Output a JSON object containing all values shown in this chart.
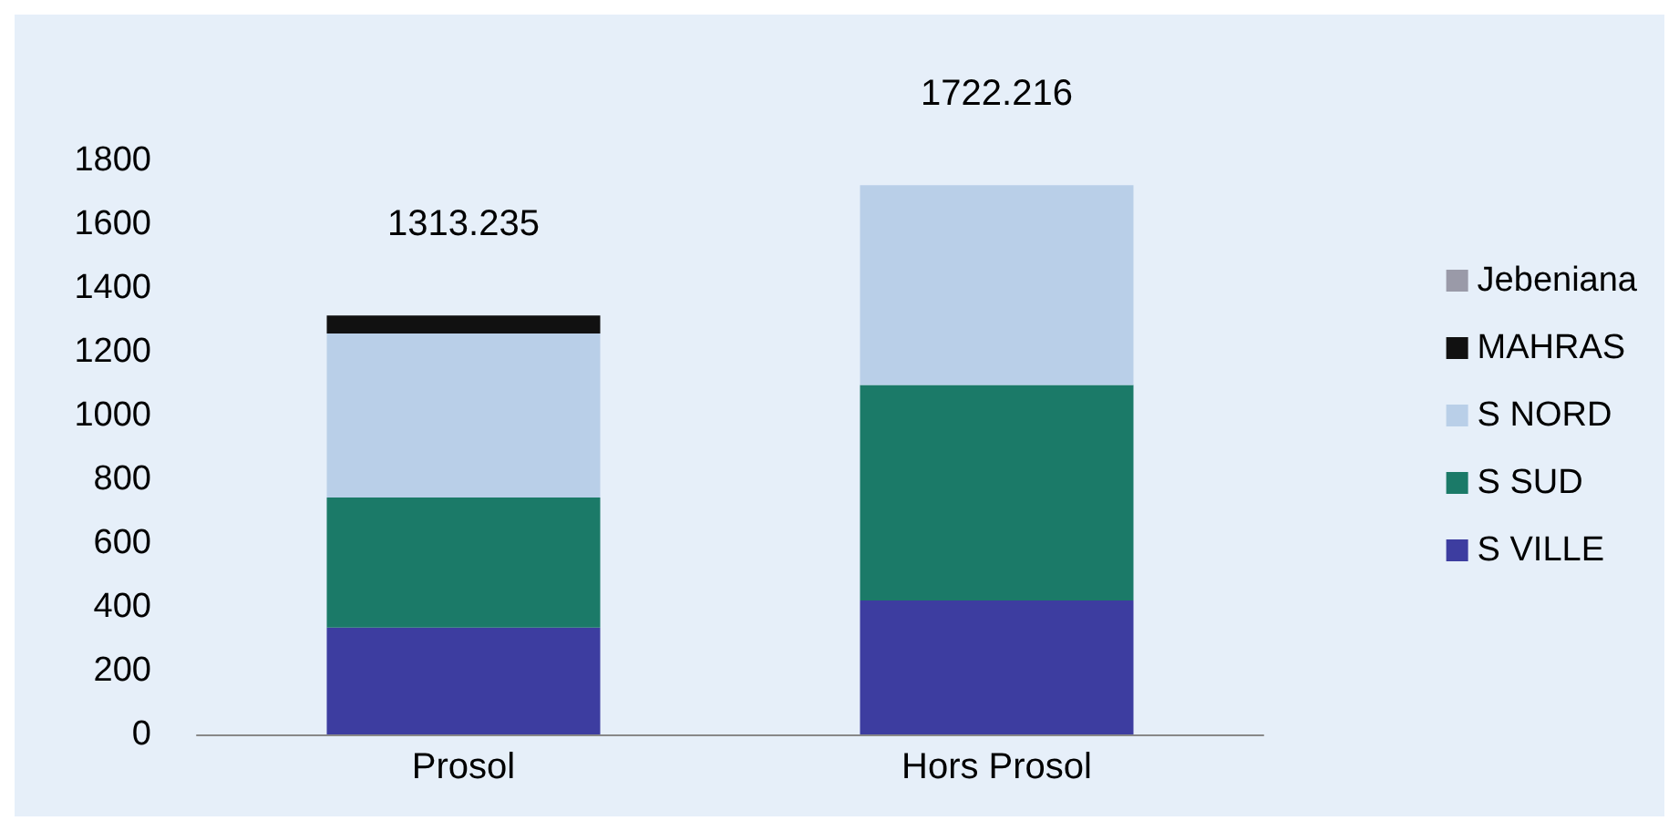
{
  "chart_data": {
    "type": "bar",
    "stacked": true,
    "categories": [
      "Prosol",
      "Hors Prosol"
    ],
    "series": [
      {
        "name": "S VILLE",
        "color": "#3d3da0",
        "values": [
          335,
          420
        ]
      },
      {
        "name": "S SUD",
        "color": "#1b7a68",
        "values": [
          408,
          676
        ]
      },
      {
        "name": "S NORD",
        "color": "#b9cfe8",
        "values": [
          514.235,
          626.216
        ]
      },
      {
        "name": "MAHRAS",
        "color": "#111111",
        "values": [
          56,
          0
        ]
      },
      {
        "name": "Jebeniana",
        "color": "#9a9aa8",
        "values": [
          0,
          0
        ]
      }
    ],
    "totals": [
      "1313.235",
      "1722.216"
    ],
    "ylim": [
      0,
      1800
    ],
    "yticks": [
      0,
      200,
      400,
      600,
      800,
      1000,
      1200,
      1400,
      1600,
      1800
    ],
    "grid": false,
    "legend": "right"
  }
}
